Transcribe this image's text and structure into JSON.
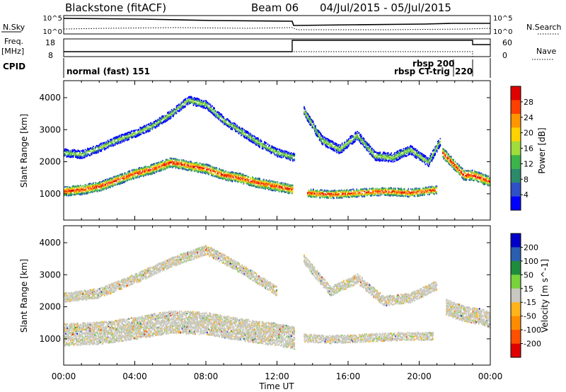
{
  "header": {
    "station": "Blackstone (fitACF)",
    "beam": "Beam 06",
    "dates": "04/Jul/2015 - 05/Jul/2015"
  },
  "small_panels": {
    "nsky_label": "N.Sky",
    "nsearch_label": "N.Search",
    "freq_label": "Freq.",
    "mhz_label": "[MHz]",
    "nave_label": "Nave",
    "cpid_label": "CPID",
    "ticks_left_1": [
      "10^5",
      "10^0"
    ],
    "ticks_right_1": [
      "10^5",
      "10^0"
    ],
    "ticks_left_2": [
      "18",
      "8"
    ],
    "ticks_right_2": [
      "60",
      "0"
    ]
  },
  "cpid": {
    "mode_a": "normal (fast) 151",
    "mode_b": "rbsp 200",
    "mode_c": "rbsp CT-trig",
    "mode_d": "220"
  },
  "colors": {
    "power": [
      "#0000ff",
      "#3050c8",
      "#2a8a6a",
      "#3cb44a",
      "#a0dc3c",
      "#ffd200",
      "#ff9600",
      "#ff4000",
      "#e00000"
    ],
    "velocity": [
      "#0000c8",
      "#2a5fb0",
      "#1e8c3c",
      "#78d23c",
      "#c8c8c0",
      "#ffb41e",
      "#ff8c00",
      "#ff5000",
      "#e00000"
    ]
  },
  "chart_data": [
    {
      "type": "heatmap",
      "title": "",
      "ylabel": "Slant Range [km]",
      "xlabel": "",
      "x_tick_labels": [
        "00:00",
        "04:00",
        "08:00",
        "12:00",
        "16:00",
        "20:00",
        "00:00"
      ],
      "xlim_hours": [
        0,
        24
      ],
      "ylim": [
        180,
        4530
      ],
      "y_ticks": [
        1000,
        2000,
        3000,
        4000
      ],
      "colorbar_label": "Power [dB]",
      "colorbar_ticks": [
        "4",
        "8",
        "12",
        "16",
        "20",
        "24",
        "28"
      ],
      "series": [
        {
          "type": "band",
          "x": [
            0,
            1,
            2,
            3,
            4,
            5,
            6,
            7,
            8,
            9,
            10,
            11,
            12,
            12.9
          ],
          "y": [
            1100,
            1150,
            1250,
            1450,
            1650,
            1800,
            2000,
            1900,
            1800,
            1600,
            1500,
            1350,
            1250,
            1150
          ],
          "width": 300
        },
        {
          "type": "band",
          "x": [
            0,
            1,
            2,
            3,
            4,
            5,
            6,
            7,
            8,
            9,
            10,
            11,
            12,
            13
          ],
          "y": [
            2300,
            2250,
            2450,
            2700,
            2900,
            3150,
            3500,
            3950,
            3800,
            3300,
            2950,
            2600,
            2300,
            2150
          ],
          "width": 250
        },
        {
          "type": "band",
          "x": [
            13.7,
            15,
            16.5,
            18,
            19.5,
            21
          ],
          "y": [
            1050,
            1000,
            1050,
            1100,
            1050,
            1150
          ],
          "width": 250
        },
        {
          "type": "band",
          "x": [
            13.5,
            14.5,
            15.5,
            16.5,
            17.5,
            18.5,
            19.5,
            20.5,
            21.2
          ],
          "y": [
            3600,
            2700,
            2400,
            2850,
            2200,
            2150,
            2400,
            2000,
            2700
          ],
          "width": 280
        },
        {
          "type": "band",
          "x": [
            21.3,
            22,
            22.5,
            23,
            23.5,
            24
          ],
          "y": [
            2300,
            1900,
            1600,
            1600,
            1500,
            1400
          ],
          "width": 320
        }
      ]
    },
    {
      "type": "heatmap",
      "title": "",
      "ylabel": "Slant Range [km]",
      "xlabel": "Time UT",
      "x_tick_labels": [
        "00:00",
        "04:00",
        "08:00",
        "12:00",
        "16:00",
        "20:00",
        "00:00"
      ],
      "xlim_hours": [
        0,
        24
      ],
      "ylim": [
        180,
        4530
      ],
      "y_ticks": [
        1000,
        2000,
        3000,
        4000
      ],
      "colorbar_label": "Velocity [m s^-1]",
      "colorbar_ticks": [
        "200",
        "100",
        "50",
        "15",
        "-15",
        "-50",
        "-100",
        "-200"
      ],
      "series": [
        {
          "type": "band",
          "x": [
            0,
            2,
            4,
            6,
            8,
            10,
            12,
            13
          ],
          "y": [
            1150,
            1200,
            1350,
            1550,
            1500,
            1300,
            1150,
            1050
          ],
          "width": 700
        },
        {
          "type": "band",
          "x": [
            0,
            2,
            4,
            6,
            8,
            10,
            12
          ],
          "y": [
            2300,
            2450,
            2900,
            3400,
            3800,
            3200,
            2500
          ],
          "width": 300
        },
        {
          "type": "band",
          "x": [
            13.5,
            15,
            17,
            19,
            20.8
          ],
          "y": [
            1050,
            1000,
            1050,
            1100,
            1100
          ],
          "width": 250
        },
        {
          "type": "band",
          "x": [
            13.5,
            15,
            16.5,
            18,
            19.5,
            21
          ],
          "y": [
            3500,
            2500,
            2900,
            2200,
            2300,
            2700
          ],
          "width": 300
        },
        {
          "type": "band",
          "x": [
            21.5,
            22.5,
            23.5,
            24
          ],
          "y": [
            2000,
            1800,
            1700,
            1600
          ],
          "width": 500
        }
      ]
    }
  ]
}
